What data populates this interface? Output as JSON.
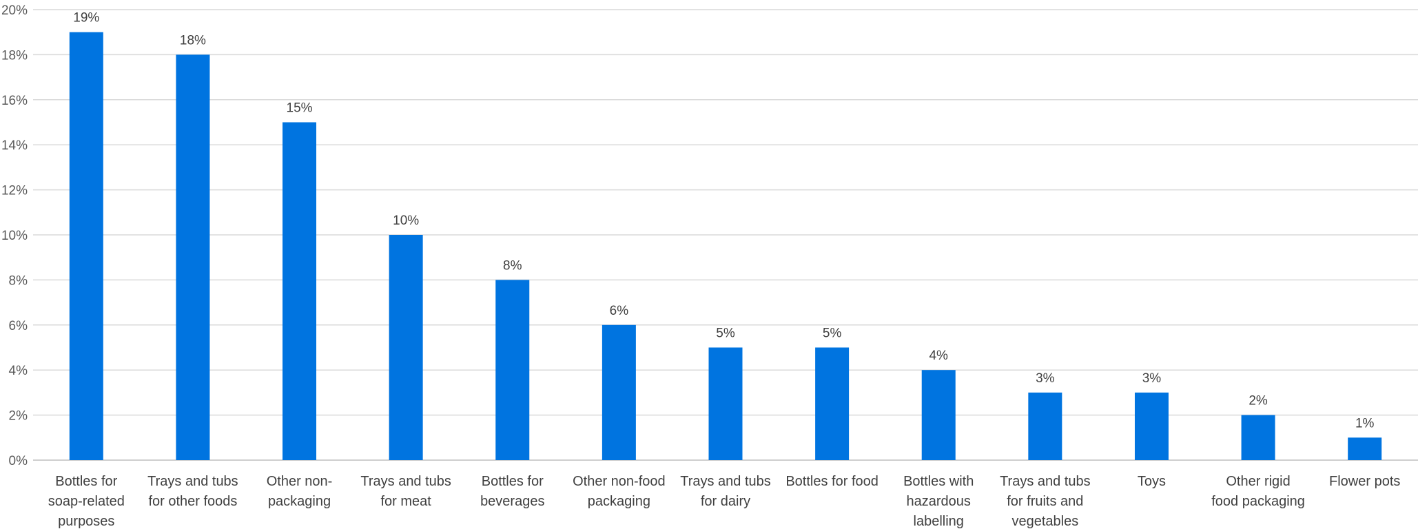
{
  "chart_data": {
    "type": "bar",
    "title": "",
    "xlabel": "",
    "ylabel": "",
    "ylim": [
      0,
      20
    ],
    "ytick_step": 2,
    "ytick_suffix": "%",
    "value_suffix": "%",
    "grid": true,
    "legend": "none",
    "bar_color": "#0074E0",
    "categories": [
      "Bottles for soap-related purposes",
      "Trays and tubs for other foods",
      "Other non-packaging",
      "Trays and tubs for meat",
      "Bottles for beverages",
      "Other non-food packaging",
      "Trays and tubs for dairy",
      "Bottles for food",
      "Bottles with hazardous labelling",
      "Trays and tubs for fruits and vegetables",
      "Toys",
      "Other rigid food packaging",
      "Flower pots"
    ],
    "category_lines": [
      [
        "Bottles for",
        "soap-related",
        "purposes"
      ],
      [
        "Trays and tubs",
        "for other foods"
      ],
      [
        "Other non-",
        "packaging"
      ],
      [
        "Trays and tubs",
        "for meat"
      ],
      [
        "Bottles for",
        "beverages"
      ],
      [
        "Other non-food",
        "packaging"
      ],
      [
        "Trays and tubs",
        "for dairy"
      ],
      [
        "Bottles for food"
      ],
      [
        "Bottles with",
        "hazardous",
        "labelling"
      ],
      [
        "Trays and tubs",
        "for fruits and",
        "vegetables"
      ],
      [
        "Toys"
      ],
      [
        "Other rigid",
        "food packaging"
      ],
      [
        "Flower pots"
      ]
    ],
    "values": [
      19,
      18,
      15,
      10,
      8,
      6,
      5,
      5,
      4,
      3,
      3,
      2,
      1
    ]
  }
}
